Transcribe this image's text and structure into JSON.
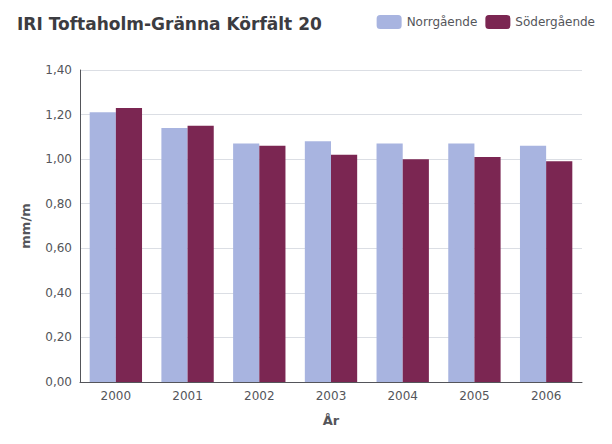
{
  "chart_data": {
    "type": "bar",
    "title": "IRI Toftaholm-Gränna Körfält 20",
    "xlabel": "År",
    "ylabel": "mm/m",
    "categories": [
      "2000",
      "2001",
      "2002",
      "2003",
      "2004",
      "2005",
      "2006"
    ],
    "series": [
      {
        "name": "Norrgående",
        "color": "#a8b4e0",
        "values": [
          1.21,
          1.14,
          1.07,
          1.08,
          1.07,
          1.07,
          1.06
        ]
      },
      {
        "name": "Södergående",
        "color": "#7b2652",
        "values": [
          1.23,
          1.15,
          1.06,
          1.02,
          1.0,
          1.01,
          0.99
        ]
      }
    ],
    "ylim": [
      0.0,
      1.4
    ],
    "yticks": [
      {
        "value": 0.0,
        "label": "0,00"
      },
      {
        "value": 0.2,
        "label": "0,20"
      },
      {
        "value": 0.4,
        "label": "0,40"
      },
      {
        "value": 0.6,
        "label": "0,60"
      },
      {
        "value": 0.8,
        "label": "0,80"
      },
      {
        "value": 1.0,
        "label": "1,00"
      },
      {
        "value": 1.2,
        "label": "1,20"
      },
      {
        "value": 1.4,
        "label": "1,40"
      }
    ],
    "grid": true,
    "legend": "upper right"
  }
}
